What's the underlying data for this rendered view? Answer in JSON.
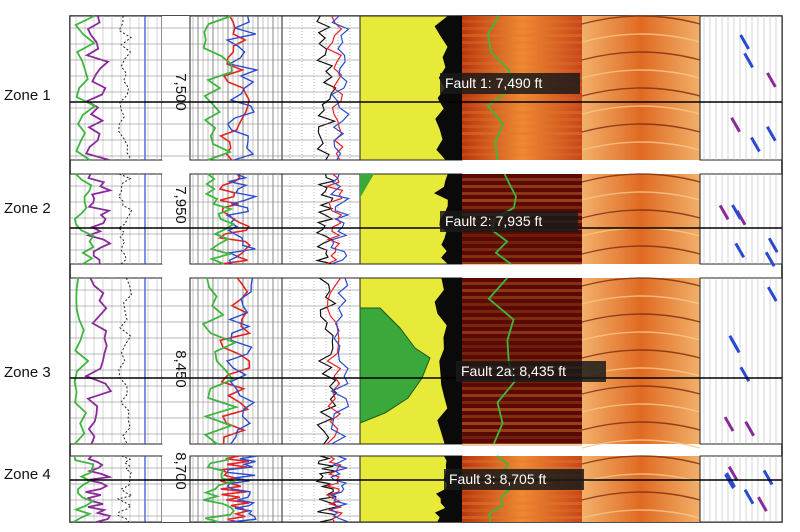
{
  "chart_data": {
    "type": "well-log-panel",
    "zones": [
      {
        "label": "Zone 1",
        "depth_label": "7,500",
        "depth_ft": 7500,
        "fault": {
          "label": "Fault 1: 7,490 ft",
          "depth_ft": 7490
        }
      },
      {
        "label": "Zone 2",
        "depth_label": "7,950",
        "depth_ft": 7950,
        "fault": {
          "label": "Fault 2: 7,935 ft",
          "depth_ft": 7935
        }
      },
      {
        "label": "Zone 3",
        "depth_label": "8,450",
        "depth_ft": 8450,
        "fault": {
          "label": "Fault 2a: 8,435 ft",
          "depth_ft": 8435
        }
      },
      {
        "label": "Zone 4",
        "depth_label": "8,700",
        "depth_ft": 8700,
        "fault": {
          "label": "Fault 3: 8,705 ft",
          "depth_ft": 8705
        }
      }
    ],
    "colors": {
      "green": "#3cb83c",
      "purple": "#8a2a9a",
      "red": "#e82020",
      "blue": "#2a4ad0",
      "yellow_fill": "#e8ea3a",
      "green_fill": "#3aa83a",
      "image_dark": "#5a0a05",
      "image_orange": "#e07a2a",
      "image_light": "#f7c98a"
    }
  }
}
